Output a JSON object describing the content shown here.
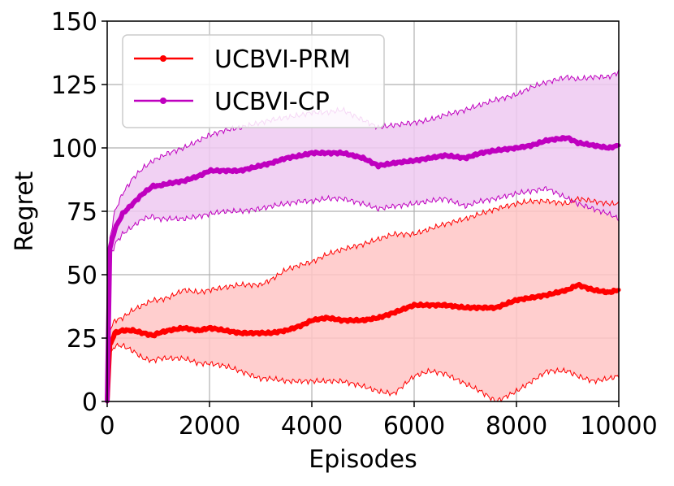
{
  "chart_data": {
    "type": "line",
    "title": "",
    "xlabel": "Episodes",
    "ylabel": "Regret",
    "xlim": [
      0,
      10000
    ],
    "ylim": [
      0,
      150
    ],
    "xticks": [
      0,
      2000,
      4000,
      6000,
      8000,
      10000
    ],
    "yticks": [
      0,
      25,
      50,
      75,
      100,
      125,
      150
    ],
    "grid": true,
    "legend_position": "top-left",
    "series": [
      {
        "name": "UCBVI-PRM",
        "color": "#ff0000",
        "fill_color": "#ffc6c6",
        "x": [
          0,
          50,
          150,
          300,
          500,
          700,
          900,
          1000,
          1200,
          1500,
          1800,
          2000,
          2300,
          2600,
          3000,
          3200,
          3500,
          3800,
          4000,
          4300,
          4600,
          5000,
          5300,
          5600,
          6000,
          6300,
          6600,
          7000,
          7300,
          7600,
          8000,
          8300,
          8600,
          9000,
          9200,
          9500,
          9800,
          10000
        ],
        "mean": [
          0,
          22,
          27,
          28,
          28,
          27,
          26,
          27,
          28,
          29,
          28,
          29,
          28,
          27,
          27,
          27,
          28,
          30,
          32,
          33,
          32,
          32,
          33,
          35,
          38,
          38,
          38,
          37,
          37,
          37,
          40,
          41,
          42,
          44,
          46,
          44,
          43,
          44
        ],
        "upper": [
          0,
          28,
          32,
          33,
          36,
          38,
          40,
          40,
          41,
          44,
          43,
          44,
          45,
          46,
          46,
          48,
          52,
          54,
          55,
          58,
          60,
          62,
          64,
          66,
          66,
          68,
          70,
          72,
          74,
          76,
          78,
          79,
          79,
          78,
          80,
          79,
          78,
          78
        ],
        "lower": [
          0,
          18,
          22,
          22,
          20,
          17,
          16,
          17,
          17,
          17,
          15,
          15,
          14,
          12,
          9,
          9,
          8,
          8,
          8,
          8,
          8,
          6,
          4,
          3,
          10,
          12,
          11,
          7,
          4,
          0,
          4,
          8,
          12,
          12,
          10,
          8,
          9,
          10
        ]
      },
      {
        "name": "UCBVI-CP",
        "color": "#bf00bf",
        "fill_color": "#eec9f1",
        "x": [
          0,
          50,
          150,
          300,
          500,
          700,
          900,
          1000,
          1200,
          1500,
          1800,
          2000,
          2300,
          2600,
          3000,
          3200,
          3500,
          3800,
          4000,
          4300,
          4600,
          5000,
          5300,
          5600,
          6000,
          6300,
          6600,
          7000,
          7300,
          7600,
          8000,
          8300,
          8600,
          9000,
          9200,
          9500,
          9800,
          10000
        ],
        "mean": [
          0,
          60,
          68,
          74,
          78,
          82,
          85,
          85,
          86,
          87,
          89,
          91,
          91,
          91,
          93,
          94,
          96,
          97,
          98,
          98,
          98,
          96,
          93,
          94,
          95,
          96,
          97,
          96,
          98,
          99,
          100,
          101,
          103,
          104,
          102,
          101,
          100,
          101
        ],
        "upper": [
          0,
          64,
          75,
          82,
          88,
          92,
          95,
          96,
          98,
          100,
          103,
          105,
          107,
          108,
          110,
          111,
          112,
          113,
          114,
          114,
          115,
          111,
          108,
          109,
          110,
          111,
          113,
          115,
          117,
          119,
          121,
          124,
          126,
          128,
          127,
          128,
          128,
          130
        ],
        "lower": [
          0,
          56,
          62,
          66,
          69,
          72,
          73,
          72,
          72,
          72,
          73,
          74,
          75,
          75,
          76,
          77,
          78,
          79,
          79,
          80,
          80,
          78,
          76,
          77,
          78,
          79,
          80,
          77,
          79,
          80,
          82,
          83,
          84,
          80,
          78,
          76,
          74,
          72
        ]
      }
    ]
  }
}
